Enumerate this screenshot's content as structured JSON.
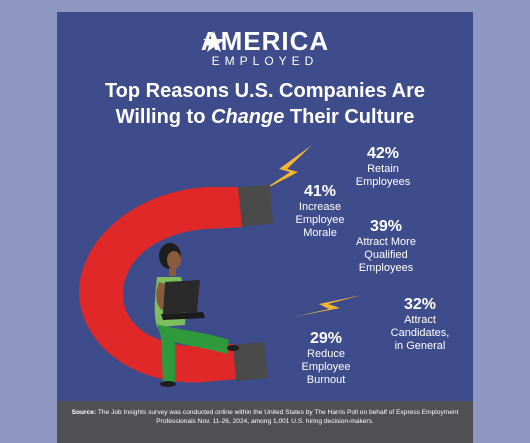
{
  "brand": {
    "name_top": "AMERICA",
    "name_bottom": "EMPLOYED"
  },
  "title": {
    "line1": "Top Reasons U.S. Companies Are",
    "line2_prefix": "Willing to ",
    "line2_emphasis": "Change",
    "line2_suffix": " Their Culture"
  },
  "colors": {
    "background": "#8E97C2",
    "panel": "#3F4C8B",
    "magnet_red": "#E02828",
    "magnet_tip": "#4A4A4A",
    "lightning": "#F5B730",
    "footer": "#505052"
  },
  "chart_data": {
    "type": "infographic",
    "unit": "%",
    "items": [
      {
        "label": "Retain Employees",
        "value": 42
      },
      {
        "label": "Increase Employee Morale",
        "value": 41
      },
      {
        "label": "Attract More Qualified Employees",
        "value": 39
      },
      {
        "label": "Attract Candidates, in General",
        "value": 32
      },
      {
        "label": "Reduce Employee Burnout",
        "value": 29
      }
    ]
  },
  "stats": [
    {
      "pct": "42%",
      "label_lines": [
        "Retain",
        "Employees"
      ]
    },
    {
      "pct": "41%",
      "label_lines": [
        "Increase",
        "Employee",
        "Morale"
      ]
    },
    {
      "pct": "39%",
      "label_lines": [
        "Attract More",
        "Qualified",
        "Employees"
      ]
    },
    {
      "pct": "32%",
      "label_lines": [
        "Attract",
        "Candidates,",
        "in General"
      ]
    },
    {
      "pct": "29%",
      "label_lines": [
        "Reduce",
        "Employee",
        "Burnout"
      ]
    }
  ],
  "footer": {
    "source_label": "Source:",
    "source_text": "The Job Insights survey was conducted online within the United States by The Harris Poll on behalf of Express Employment Professionals Nov. 11-26, 2024, among 1,001 U.S. hiring decision-makers."
  }
}
